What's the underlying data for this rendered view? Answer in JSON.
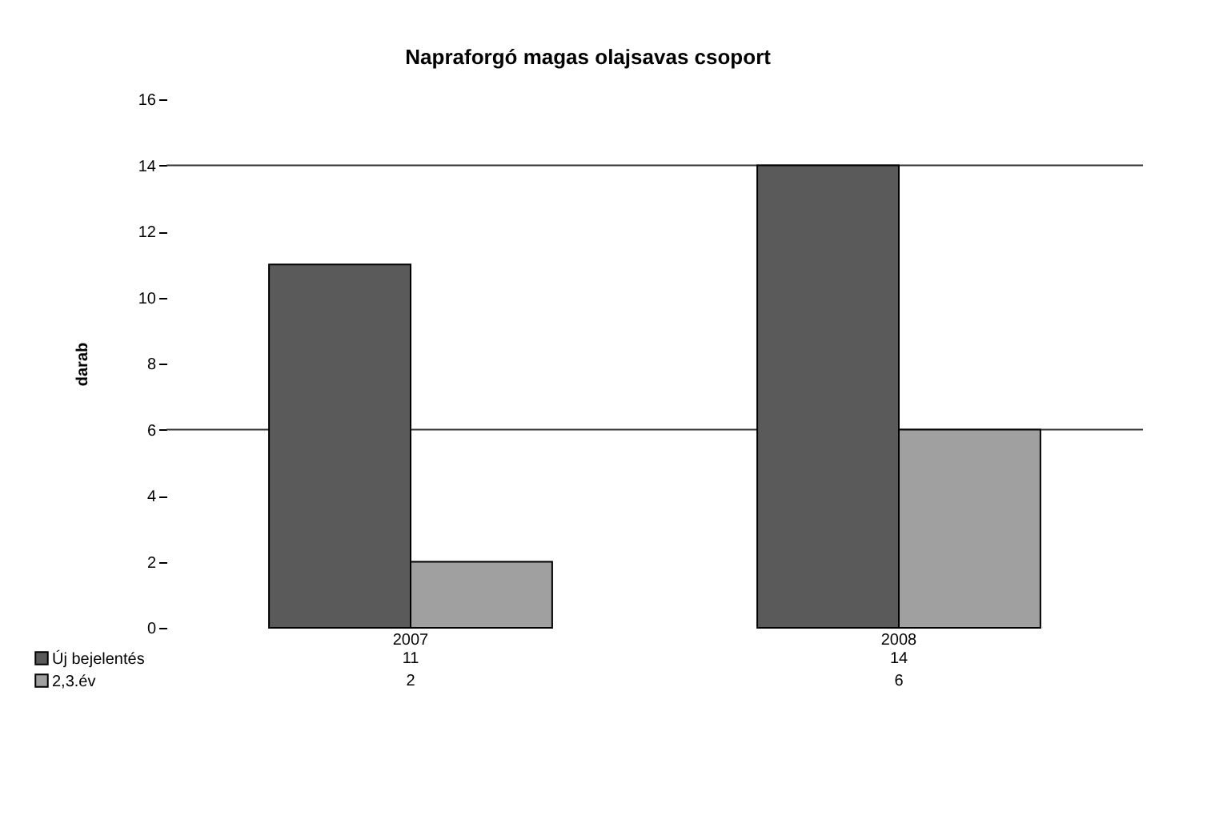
{
  "chart_data": {
    "type": "bar",
    "title": "Napraforgó magas olajsavas csoport",
    "ylabel": "darab",
    "categories": [
      "2007",
      "2008"
    ],
    "series": [
      {
        "name": "Új bejelentés",
        "color": "#5a5a5a",
        "values": [
          11,
          14
        ]
      },
      {
        "name": "2,3.év",
        "color": "#a0a0a0",
        "values": [
          2,
          6
        ]
      }
    ],
    "ylim": [
      0,
      16
    ],
    "yticks": [
      0,
      2,
      4,
      6,
      8,
      10,
      12,
      14,
      16
    ],
    "grid": false,
    "ref_lines": [
      {
        "axis": "y",
        "value": 6,
        "color": "#333333"
      },
      {
        "axis": "y",
        "value": 14,
        "color": "#333333"
      }
    ],
    "data_labels": true,
    "legend": "bottom"
  }
}
